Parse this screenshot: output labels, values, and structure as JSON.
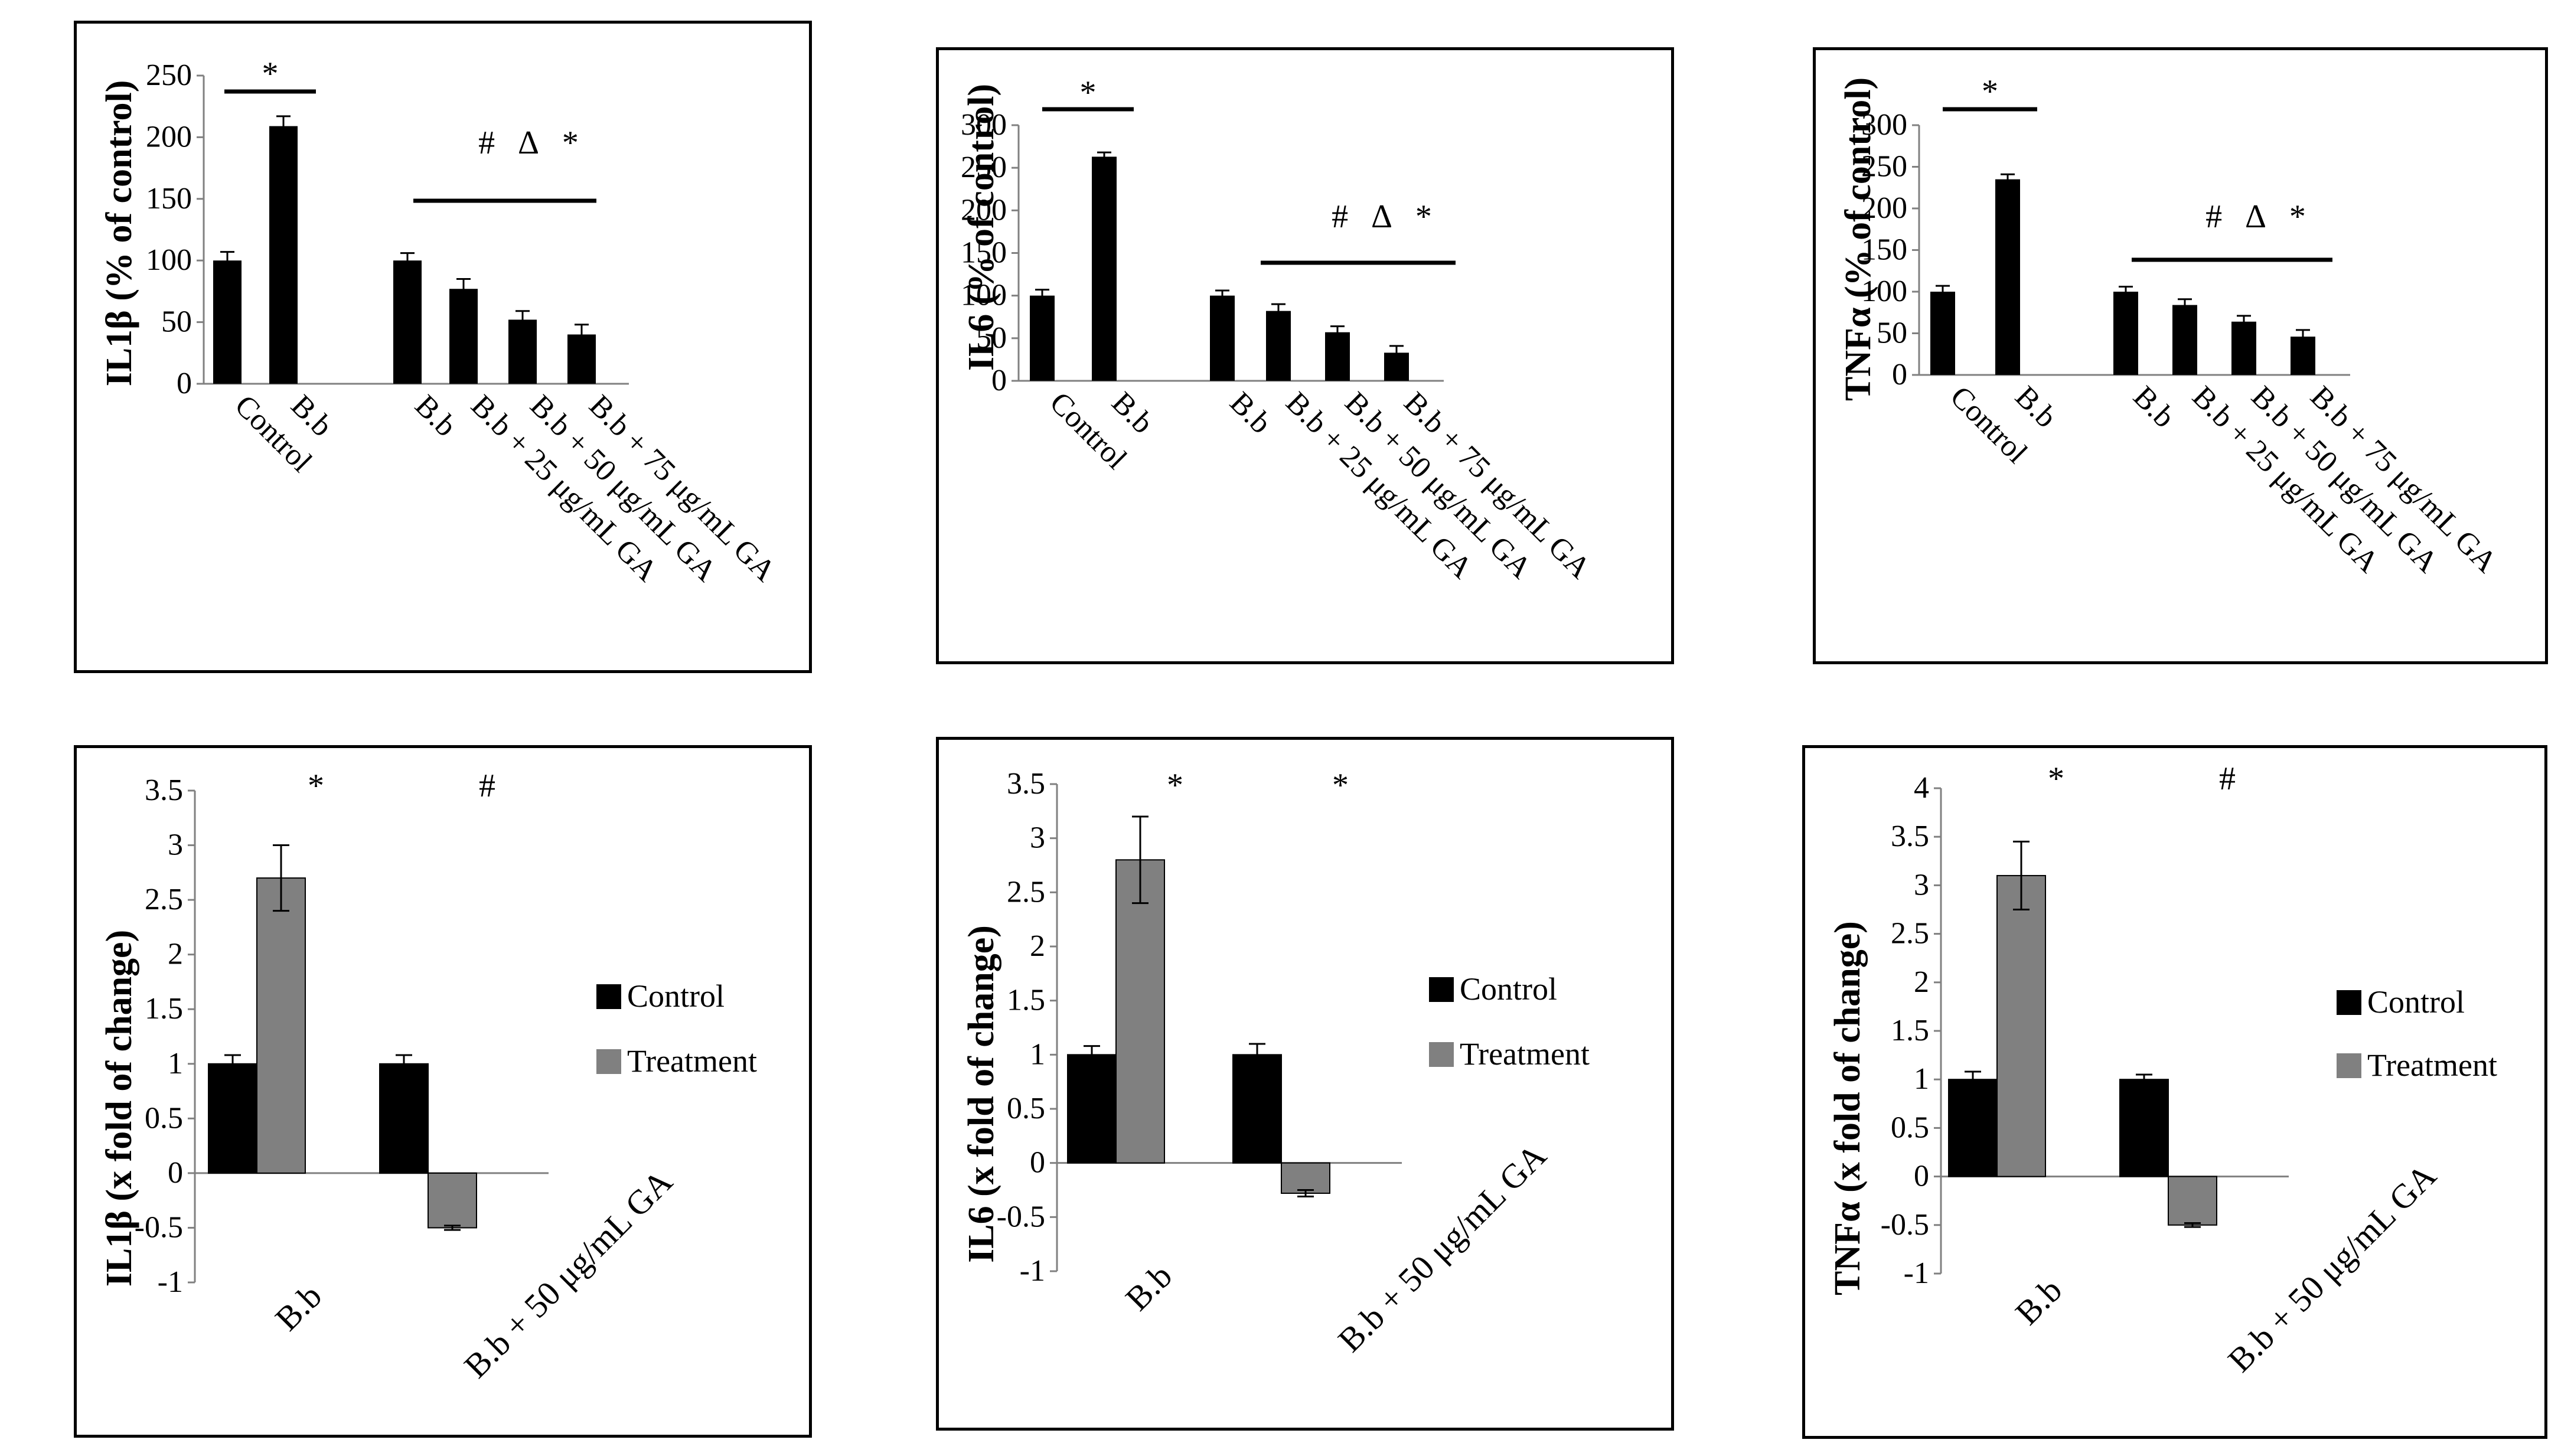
{
  "colors": {
    "control": "#000000",
    "treatment": "#808080",
    "axis": "#808080"
  },
  "chart_data": [
    {
      "type": "bar",
      "ylabel": "IL1β (% of control)",
      "ylim": [
        0,
        250
      ],
      "yticks": [
        "0",
        "50",
        "100",
        "150",
        "200",
        "250"
      ],
      "categories": [
        "Control",
        "B.b",
        "B.b",
        "B.b + 25 μg/mL GA",
        "B.b + 50 μg/mL GA",
        "B.b + 75 μg/mL GA"
      ],
      "values": [
        100,
        209,
        100,
        77,
        52,
        40
      ],
      "errors": [
        7,
        8,
        6,
        8,
        7,
        8
      ],
      "sig_labels": [
        "*",
        "# Δ *"
      ]
    },
    {
      "type": "bar",
      "ylabel": "IL6 (% of control)",
      "ylim": [
        0,
        300
      ],
      "yticks": [
        "0",
        "50",
        "100",
        "150",
        "200",
        "250",
        "300"
      ],
      "categories": [
        "Control",
        "B.b",
        "B.b",
        "B.b + 25 μg/mL GA",
        "B.b + 50 μg/mL GA",
        "B.b + 75 μg/mL GA"
      ],
      "values": [
        100,
        263,
        100,
        82,
        57,
        33
      ],
      "errors": [
        7,
        5,
        6,
        8,
        7,
        8
      ],
      "sig_labels": [
        "*",
        "# Δ *"
      ]
    },
    {
      "type": "bar",
      "ylabel": "TNFα (% of control)",
      "ylim": [
        0,
        300
      ],
      "yticks": [
        "0",
        "50",
        "100",
        "150",
        "200",
        "250",
        "300"
      ],
      "categories": [
        "Control",
        "B.b",
        "B.b",
        "B.b + 25 μg/mL GA",
        "B.b + 50 μg/mL GA",
        "B.b + 75 μg/mL GA"
      ],
      "values": [
        100,
        235,
        100,
        84,
        64,
        46
      ],
      "errors": [
        7,
        6,
        6,
        7,
        7,
        8
      ],
      "sig_labels": [
        "*",
        "# Δ *"
      ]
    },
    {
      "type": "bar",
      "ylabel": "IL1β (x fold of change)",
      "ylim": [
        -1,
        3.5
      ],
      "yticks": [
        "-1",
        "-0.5",
        "0",
        "0.5",
        "1",
        "1.5",
        "2",
        "2.5",
        "3",
        "3.5"
      ],
      "categories": [
        "B.b",
        "B.b + 50 μg/mL GA"
      ],
      "series": [
        {
          "name": "Control",
          "values": [
            1,
            1
          ],
          "errors": [
            0.08,
            0.08
          ]
        },
        {
          "name": "Treatment",
          "values": [
            2.7,
            -0.5
          ],
          "errors": [
            0.3,
            0.02
          ]
        }
      ],
      "sig_labels": [
        "*",
        "#"
      ],
      "legend": "right"
    },
    {
      "type": "bar",
      "ylabel": "IL6 (x fold of change)",
      "ylim": [
        -1,
        3.5
      ],
      "yticks": [
        "-1",
        "-0.5",
        "0",
        "0.5",
        "1",
        "1.5",
        "2",
        "2.5",
        "3",
        "3.5"
      ],
      "categories": [
        "B.b",
        "B.b + 50 μg/mL GA"
      ],
      "series": [
        {
          "name": "Control",
          "values": [
            1,
            1
          ],
          "errors": [
            0.08,
            0.1
          ]
        },
        {
          "name": "Treatment",
          "values": [
            2.8,
            -0.28
          ],
          "errors": [
            0.4,
            0.03
          ]
        }
      ],
      "sig_labels": [
        "*",
        "*"
      ],
      "legend": "right"
    },
    {
      "type": "bar",
      "ylabel": "TNFα (x fold of change)",
      "ylim": [
        -1,
        4
      ],
      "yticks": [
        "-1",
        "-0.5",
        "0",
        "0.5",
        "1",
        "1.5",
        "2",
        "2.5",
        "3",
        "3.5",
        "4"
      ],
      "categories": [
        "B.b",
        "B.b + 50 μg/mL GA"
      ],
      "series": [
        {
          "name": "Control",
          "values": [
            1,
            1
          ],
          "errors": [
            0.08,
            0.05
          ]
        },
        {
          "name": "Treatment",
          "values": [
            3.1,
            -0.5
          ],
          "errors": [
            0.35,
            0.02
          ]
        }
      ],
      "sig_labels": [
        "*",
        "#"
      ],
      "legend": "right"
    }
  ]
}
